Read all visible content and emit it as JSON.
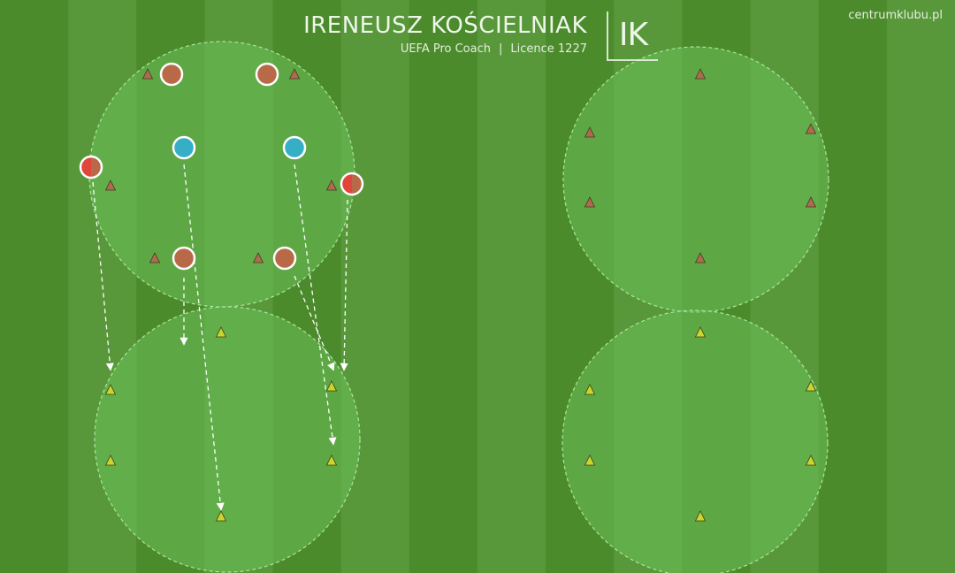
{
  "header": {
    "coach_name": "IRENEUSZ KOŚCIELNIAK",
    "role": "UEFA Pro Coach",
    "separator": "|",
    "licence": "Licence 1227",
    "logo_text": "IK",
    "site": "centrumklubu.pl"
  },
  "colors": {
    "grass_stripe_a": "#4c8b2c",
    "grass_stripe_b": "#58983a",
    "zone_fill": "#6cc15a",
    "zone_stroke": "#a8e6a0",
    "cone_brown": "#b06a4f",
    "cone_yellow": "#c9d62a",
    "player_orange": "#b86a48",
    "player_blue": "#35aec6",
    "player_red": "#e0463c",
    "arrow": "#ffffff"
  },
  "zones": [
    {
      "id": "left-top",
      "cone_color": "brown"
    },
    {
      "id": "left-bottom",
      "cone_color": "yellow"
    },
    {
      "id": "right-top",
      "cone_color": "brown"
    },
    {
      "id": "right-bottom",
      "cone_color": "yellow"
    }
  ],
  "players": [
    {
      "id": "orange-1",
      "team": "orange"
    },
    {
      "id": "orange-2",
      "team": "orange"
    },
    {
      "id": "orange-3",
      "team": "orange"
    },
    {
      "id": "orange-4",
      "team": "orange"
    },
    {
      "id": "blue-1",
      "team": "blue"
    },
    {
      "id": "blue-2",
      "team": "blue"
    },
    {
      "id": "red-1",
      "team": "red-half"
    },
    {
      "id": "red-2",
      "team": "red-half"
    }
  ]
}
